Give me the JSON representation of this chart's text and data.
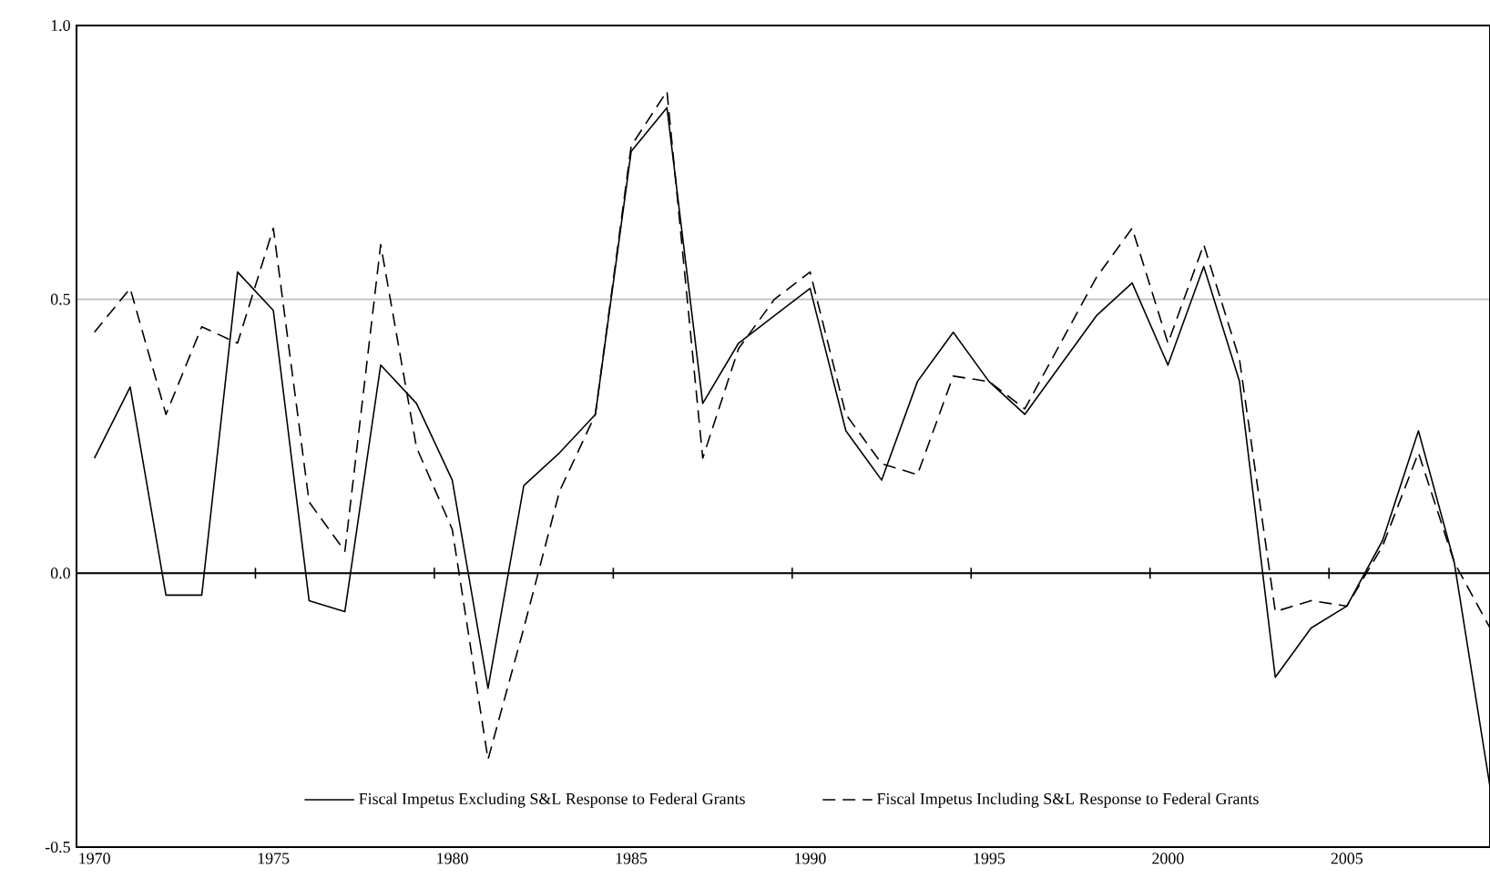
{
  "chart_data": {
    "type": "line",
    "x": [
      1970,
      1971,
      1972,
      1973,
      1974,
      1975,
      1976,
      1977,
      1978,
      1979,
      1980,
      1981,
      1982,
      1983,
      1984,
      1985,
      1986,
      1987,
      1988,
      1989,
      1990,
      1991,
      1992,
      1993,
      1994,
      1995,
      1996,
      1997,
      1998,
      1999,
      2000,
      2001,
      2002,
      2003,
      2004,
      2005,
      2006,
      2007,
      2008,
      2009
    ],
    "series": [
      {
        "name": "Fiscal Impetus Excluding S&L Response to Federal Grants",
        "color": "#000000",
        "line_style": "solid",
        "values": [
          0.21,
          0.34,
          -0.04,
          -0.04,
          0.55,
          0.48,
          -0.05,
          -0.07,
          0.38,
          0.31,
          0.17,
          -0.21,
          0.16,
          0.22,
          0.29,
          0.77,
          0.85,
          0.31,
          0.42,
          0.47,
          0.52,
          0.26,
          0.17,
          0.35,
          0.44,
          0.35,
          0.29,
          0.38,
          0.47,
          0.53,
          0.38,
          0.56,
          0.35,
          -0.19,
          -0.1,
          -0.06,
          0.06,
          0.26,
          0.02,
          -0.39
        ]
      },
      {
        "name": "Fiscal Impetus Including S&L Response to Federal Grants",
        "color": "#000000",
        "line_style": "dashed",
        "values": [
          0.44,
          0.52,
          0.29,
          0.45,
          0.42,
          0.63,
          0.13,
          0.04,
          0.6,
          0.23,
          0.08,
          -0.34,
          -0.1,
          0.15,
          0.29,
          0.78,
          0.88,
          0.21,
          0.41,
          0.5,
          0.55,
          0.29,
          0.2,
          0.18,
          0.36,
          0.35,
          0.3,
          0.42,
          0.54,
          0.63,
          0.42,
          0.6,
          0.39,
          -0.07,
          -0.05,
          -0.06,
          0.05,
          0.22,
          0.02,
          -0.1
        ]
      }
    ],
    "xlim": [
      1969.5,
      2009
    ],
    "xticks": [
      1970,
      1975,
      1980,
      1985,
      1990,
      1995,
      2000,
      2005,
      {
        "value": 1974.5,
        "label": null
      },
      {
        "value": 1979.5,
        "label": null
      },
      {
        "value": 1984.5,
        "label": null
      },
      {
        "value": 1989.5,
        "label": null
      },
      {
        "value": 1994.5,
        "label": null
      },
      {
        "value": 1999.5,
        "label": null
      },
      {
        "value": 2004.5,
        "label": null
      }
    ],
    "ylim": [
      -0.5,
      1.0
    ],
    "yticks": [
      {
        "value": -0.5,
        "label": "-0.5"
      },
      {
        "value": 0,
        "label": "0.0"
      },
      {
        "value": 0.5,
        "label": "0.5"
      },
      {
        "value": 1.0,
        "label": "1.0"
      }
    ],
    "grid": "y",
    "ref_lines": [
      {
        "axis": "y",
        "value": 0,
        "color": "#000000"
      }
    ],
    "legend": "bottom"
  }
}
